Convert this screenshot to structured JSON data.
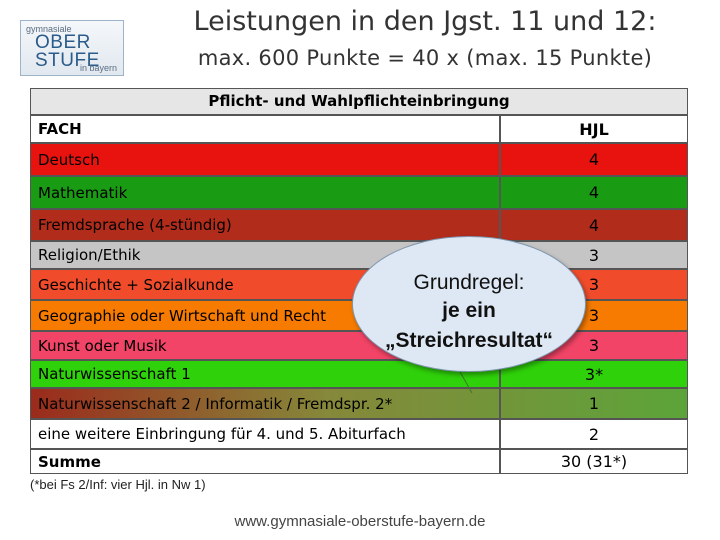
{
  "logo": {
    "line1": "gymnasiale",
    "line2": "OBER",
    "line3": "STUFE",
    "line4": "in bayern"
  },
  "title": {
    "line1": "Leistungen in den Jgst. 11 und 12:",
    "line2": "max. 600 Punkte = 40 x (max. 15 Punkte)"
  },
  "table": {
    "caption": "Pflicht- und Wahlpflichteinbringung",
    "header": {
      "fach": "FACH",
      "hjl": "HJL"
    },
    "rows": [
      {
        "fach": "Deutsch",
        "hjl": "4",
        "color": "#e8120f"
      },
      {
        "fach": "Mathematik",
        "hjl": "4",
        "color": "#199b14"
      },
      {
        "fach": "Fremdsprache (4-stündig)",
        "hjl": "4",
        "color": "#b22c1c"
      },
      {
        "fach": "Religion/Ethik",
        "hjl": "3",
        "color": "#c5c5c5"
      },
      {
        "fach": "Geschichte + Sozialkunde",
        "hjl": "3",
        "color": "#f04c2c"
      },
      {
        "fach": "Geographie oder Wirtschaft und Recht",
        "hjl": "3",
        "color": "#f77b00"
      },
      {
        "fach": "Kunst oder Musik",
        "hjl": "3",
        "color": "#f24466"
      },
      {
        "fach": "Naturwissenschaft 1",
        "hjl": "3*",
        "color": "#2fd10a"
      },
      {
        "fach": "Naturwissenschaft 2 / Informatik  / Fremdspr. 2*",
        "hjl": "1",
        "color": "#7ea04e"
      },
      {
        "fach": "eine weitere Einbringung für 4. und 5. Abiturfach",
        "hjl": "2",
        "color": "#ffffff"
      }
    ],
    "sum": {
      "label": "Summe",
      "value": "30 (31*)"
    }
  },
  "bubble": {
    "line1": "Grundregel:",
    "line2": "je ein",
    "line3": "„Streichresultat“"
  },
  "footnote": "(*bei Fs 2/Inf: vier Hjl. in Nw 1)",
  "url": "www.gymnasiale-oberstufe-bayern.de",
  "colors": {
    "deutsch": "#e8120f",
    "mathematik": "#199b14",
    "fremdsprache": "#b22c1c",
    "religion": "#c5c5c5",
    "geschichte": "#f04c2c",
    "geographie": "#f77b00",
    "kunst": "#f24466",
    "nw1": "#2fd10a",
    "nw2": "#7ea04e"
  }
}
